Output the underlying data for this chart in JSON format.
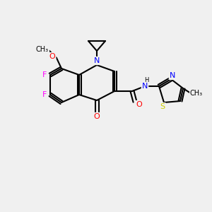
{
  "background_color": "#f0f0f0",
  "bond_color": "#000000",
  "atom_colors": {
    "F": "#ff00ff",
    "O": "#ff0000",
    "N": "#0000ff",
    "S": "#cccc00",
    "C": "#000000",
    "H": "#000000"
  },
  "figsize": [
    3.0,
    3.0
  ],
  "dpi": 100
}
